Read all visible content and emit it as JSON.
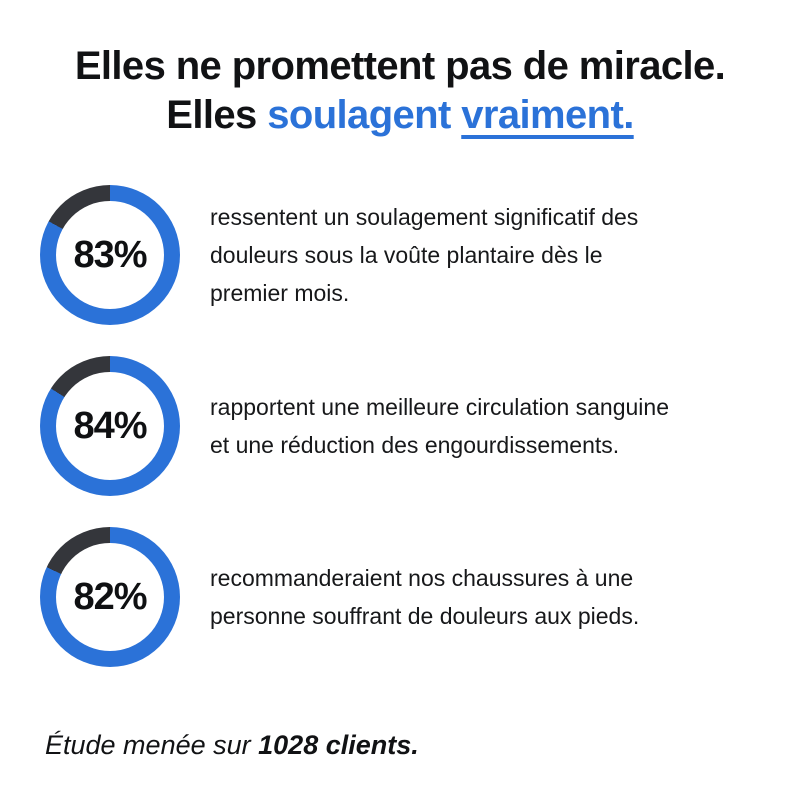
{
  "title": {
    "line1": "Elles ne promettent pas de miracle.",
    "line2_prefix": "Elles",
    "line2_highlight": "soulagent",
    "line2_underlined": "vraiment."
  },
  "chart_data": {
    "type": "donut",
    "unit": "%",
    "fill_direction": "clockwise-from-top",
    "center_labels": true,
    "series": [
      {
        "value": 83,
        "label": "83%",
        "description_lines": [
          "ressentent un soulagement significatif des",
          "douleurs sous la voûte plantaire dès le",
          "premier mois."
        ]
      },
      {
        "value": 84,
        "label": "84%",
        "description_lines": [
          "rapportent une meilleure circulation sanguine",
          "et une réduction des engourdissements."
        ]
      },
      {
        "value": 82,
        "label": "82%",
        "description_lines": [
          "recommanderaient nos chaussures à une",
          "personne souffrant de douleurs aux pieds."
        ]
      }
    ]
  },
  "colors": {
    "accent": "#2b72d8",
    "ring_filled": "#2b72d8",
    "ring_remainder": "#34363b",
    "title_text": "#111214",
    "body_text": "#17181a",
    "background": "#ffffff"
  },
  "footnote": {
    "prefix": "Étude menée sur",
    "bold": "1028 clients."
  }
}
